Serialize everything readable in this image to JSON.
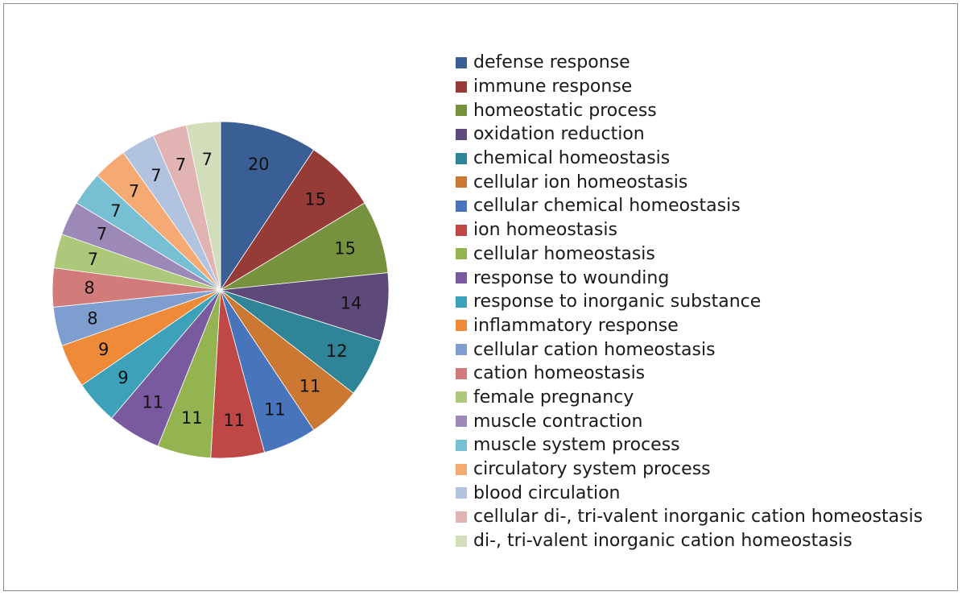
{
  "chart_data": {
    "type": "pie",
    "title": "",
    "slices": [
      {
        "label": "defense response",
        "value": 20,
        "color": "#3A5F94"
      },
      {
        "label": "immune response",
        "value": 15,
        "color": "#963B38"
      },
      {
        "label": "homeostatic process",
        "value": 15,
        "color": "#77923E"
      },
      {
        "label": "oxidation reduction",
        "value": 14,
        "color": "#5E4A7A"
      },
      {
        "label": "chemical homeostasis",
        "value": 12,
        "color": "#2F8597"
      },
      {
        "label": "cellular ion homeostasis",
        "value": 11,
        "color": "#CB7832"
      },
      {
        "label": "cellular chemical homeostasis",
        "value": 11,
        "color": "#4774BB"
      },
      {
        "label": "ion homeostasis",
        "value": 11,
        "color": "#BF4846"
      },
      {
        "label": "cellular homeostasis",
        "value": 11,
        "color": "#94B452"
      },
      {
        "label": "response to wounding",
        "value": 11,
        "color": "#7A5A9E"
      },
      {
        "label": "response to inorganic substance",
        "value": 9,
        "color": "#3DA1BA"
      },
      {
        "label": "inflammatory response",
        "value": 9,
        "color": "#EF8B38"
      },
      {
        "label": "cellular cation homeostasis",
        "value": 8,
        "color": "#7E9ECF"
      },
      {
        "label": "cation homeostasis",
        "value": 8,
        "color": "#D17B7A"
      },
      {
        "label": "female pregnancy",
        "value": 7,
        "color": "#ADC77B"
      },
      {
        "label": "muscle contraction",
        "value": 7,
        "color": "#9D89B7"
      },
      {
        "label": "muscle system process",
        "value": 7,
        "color": "#77BFD2"
      },
      {
        "label": "circulatory system process",
        "value": 7,
        "color": "#F5AA74"
      },
      {
        "label": "blood circulation",
        "value": 7,
        "color": "#B2C3E0"
      },
      {
        "label": "cellular di-, tri-valent inorganic cation homeostasis",
        "value": 7,
        "color": "#E1B3B2"
      },
      {
        "label": "di-, tri-valent inorganic cation homeostasis",
        "value": 7,
        "color": "#D2DEBA"
      }
    ],
    "legend_position": "right",
    "data_labels": "value"
  }
}
